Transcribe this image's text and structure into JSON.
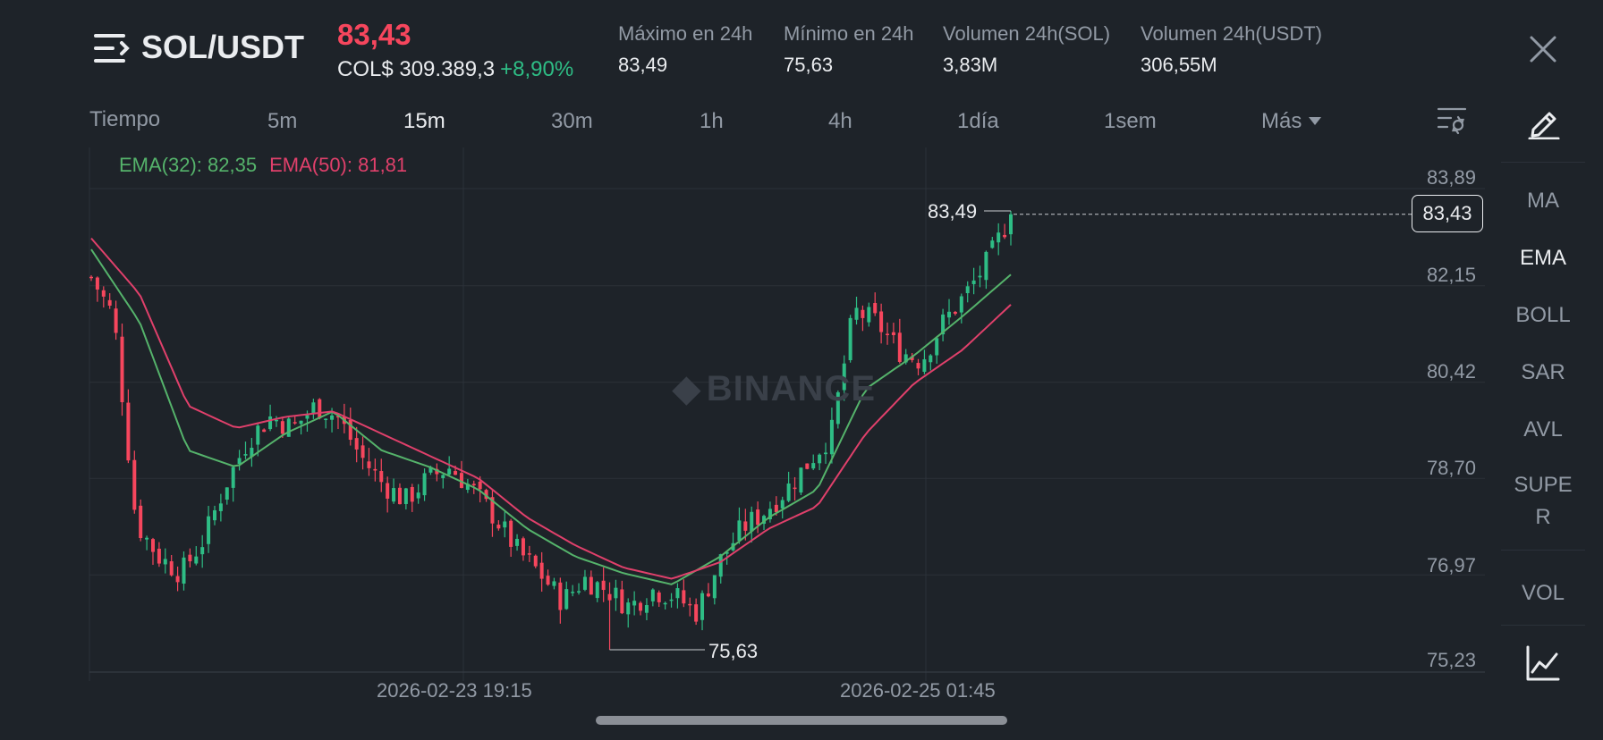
{
  "header": {
    "pair": "SOL/USDT",
    "last_price": "83,43",
    "fiat_price": "COL$ 309.389,3",
    "change": "+8,90%",
    "stats": [
      {
        "label": "Máximo en 24h",
        "value": "83,49"
      },
      {
        "label": "Mínimo en 24h",
        "value": "75,63"
      },
      {
        "label": "Volumen 24h(SOL)",
        "value": "3,83M"
      },
      {
        "label": "Volumen 24h(USDT)",
        "value": "306,55M"
      }
    ]
  },
  "timeframes": {
    "label": "Tiempo",
    "items": [
      "5m",
      "15m",
      "30m",
      "1h",
      "4h",
      "1día",
      "1sem",
      "Más"
    ],
    "active": "15m"
  },
  "indicators": {
    "items": [
      "MA",
      "EMA",
      "BOLL",
      "SAR",
      "AVL",
      "SUPE",
      "R",
      "VOL"
    ],
    "active": "EMA"
  },
  "chart": {
    "ema32_label": "EMA(32): 82,35",
    "ema50_label": "EMA(50): 81,81",
    "y_ticks": [
      "83,89",
      "82,15",
      "80,42",
      "78,70",
      "76,97",
      "75,23"
    ],
    "current_price_tag": "83,43",
    "high_marker": "83,49",
    "low_marker": "75,63",
    "x_labels": [
      "2026-02-23 19:15",
      "2026-02-25 01:45"
    ],
    "watermark": "BINANCE"
  },
  "colors": {
    "background": "#1e2329",
    "up": "#2ebd85",
    "down": "#f6465d",
    "ema32": "#55b36b",
    "ema50": "#e0406b"
  },
  "chart_data": {
    "type": "candlestick",
    "interval": "15m",
    "ylim": [
      75.23,
      83.89
    ],
    "y_ticks": [
      83.89,
      82.15,
      80.42,
      78.7,
      76.97,
      75.23
    ],
    "x_tick_labels": [
      "2026-02-23 19:15",
      "2026-02-25 01:45"
    ],
    "close_anchors": [
      82.3,
      81.6,
      77.9,
      77.3,
      77.0,
      77.6,
      78.6,
      79.4,
      79.8,
      79.6,
      80.0,
      79.8,
      79.1,
      78.6,
      78.3,
      78.7,
      78.9,
      78.5,
      78.0,
      77.4,
      77.0,
      76.5,
      76.9,
      76.7,
      76.4,
      76.7,
      76.6,
      76.3,
      77.2,
      77.8,
      78.1,
      78.5,
      79.0,
      79.5,
      81.7,
      81.5,
      81.0,
      80.8,
      81.5,
      82.0,
      82.6,
      83.43
    ],
    "series": [
      {
        "name": "EMA(32)",
        "last": 82.35,
        "anchors": [
          82.8,
          81.5,
          79.2,
          78.9,
          79.5,
          79.9,
          79.2,
          78.9,
          78.5,
          77.8,
          77.3,
          77.0,
          76.8,
          77.3,
          78.0,
          78.5,
          80.3,
          80.9,
          81.6,
          82.35
        ]
      },
      {
        "name": "EMA(50)",
        "last": 81.81,
        "anchors": [
          83.0,
          82.0,
          80.0,
          79.6,
          79.8,
          79.9,
          79.5,
          79.1,
          78.7,
          78.0,
          77.5,
          77.1,
          76.9,
          77.2,
          77.8,
          78.2,
          79.5,
          80.4,
          81.0,
          81.81
        ]
      }
    ],
    "high": {
      "value": 83.49
    },
    "low": {
      "value": 75.63
    },
    "current": 83.43
  }
}
